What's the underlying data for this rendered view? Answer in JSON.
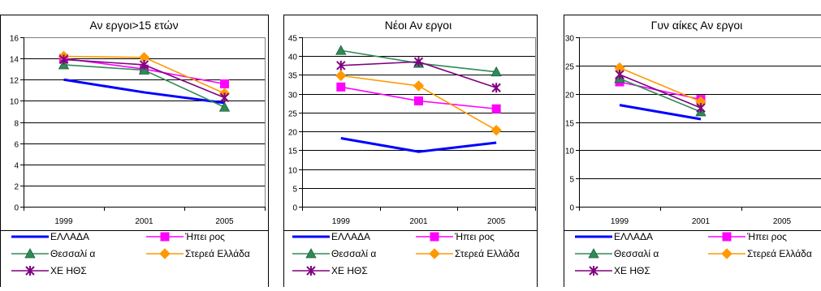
{
  "chart_data": [
    {
      "type": "line",
      "title": "Αν εργοι>15 ετών",
      "categories": [
        "1999",
        "2001",
        "2005"
      ],
      "ylim": [
        0,
        16
      ],
      "ytick_step": 2,
      "series": [
        {
          "name": "ΕΛΛΑΔΑ",
          "values": [
            12.0,
            10.8,
            9.8
          ],
          "color": "#0000ff",
          "marker": "none",
          "thick": true
        },
        {
          "name": "Ήπει ρος",
          "values": [
            14.0,
            13.0,
            11.6
          ],
          "color": "#ff00ff",
          "marker": "square"
        },
        {
          "name": "Θεσσαλί α",
          "values": [
            13.4,
            12.9,
            9.4
          ],
          "color": "#2e8b57",
          "marker": "triangle"
        },
        {
          "name": "Στερεά Ελλάδα",
          "values": [
            14.2,
            14.1,
            10.7
          ],
          "color": "#ff9900",
          "marker": "diamond"
        },
        {
          "name": "ΧΕ ΗΘΣ",
          "values": [
            13.9,
            13.4,
            10.3
          ],
          "color": "#800080",
          "marker": "star"
        }
      ]
    },
    {
      "type": "line",
      "title": "Νέοι Αν εργοι",
      "categories": [
        "1999",
        "2001",
        "2005"
      ],
      "ylim": [
        0,
        45
      ],
      "ytick_step": 5,
      "series": [
        {
          "name": "ΕΛΛΑΔΑ",
          "values": [
            18.2,
            14.6,
            17.0
          ],
          "color": "#0000ff",
          "marker": "none",
          "thick": true
        },
        {
          "name": "Ήπει ρος",
          "values": [
            31.8,
            28.1,
            26.0
          ],
          "color": "#ff00ff",
          "marker": "square"
        },
        {
          "name": "Θεσσαλί α",
          "values": [
            41.5,
            38.1,
            35.8
          ],
          "color": "#2e8b57",
          "marker": "triangle"
        },
        {
          "name": "Στερεά Ελλάδα",
          "values": [
            34.8,
            32.1,
            20.3
          ],
          "color": "#ff9900",
          "marker": "diamond"
        },
        {
          "name": "ΧΕ ΗΘΣ",
          "values": [
            37.5,
            38.5,
            31.6
          ],
          "color": "#800080",
          "marker": "star"
        }
      ]
    },
    {
      "type": "line",
      "title": "Γυν αίκες Αν εργοι",
      "categories": [
        "1999",
        "2001",
        "2005"
      ],
      "ylim": [
        0,
        30
      ],
      "ytick_step": 5,
      "series": [
        {
          "name": "ΕΛΛΑΔΑ",
          "values": [
            18.0,
            15.5,
            null
          ],
          "color": "#0000ff",
          "marker": "none",
          "thick": true
        },
        {
          "name": "Ήπει ρος",
          "values": [
            22.1,
            19.0,
            null
          ],
          "color": "#ff00ff",
          "marker": "square"
        },
        {
          "name": "Θεσσαλί α",
          "values": [
            22.7,
            16.8,
            null
          ],
          "color": "#2e8b57",
          "marker": "triangle"
        },
        {
          "name": "Στερεά Ελλάδα",
          "values": [
            24.6,
            18.6,
            null
          ],
          "color": "#ff9900",
          "marker": "diamond"
        },
        {
          "name": "ΧΕ ΗΘΣ",
          "values": [
            23.4,
            17.5,
            null
          ],
          "color": "#800080",
          "marker": "star"
        }
      ]
    }
  ]
}
